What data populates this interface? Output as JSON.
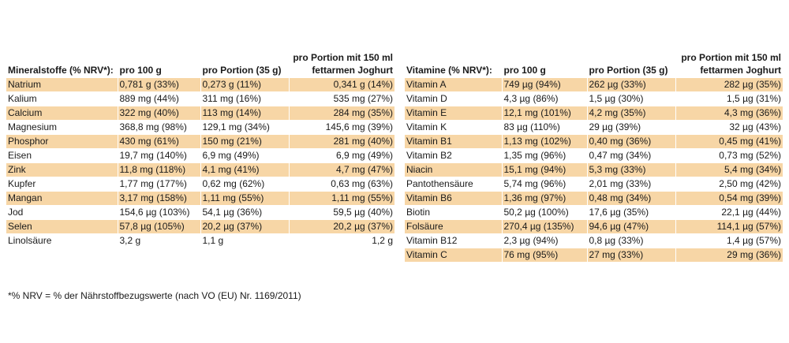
{
  "minerals": {
    "headers": {
      "name": "Mineralstoffe (% NRV*):",
      "per100": "pro 100 g",
      "perPortion": "pro Portion (35 g)",
      "perYogurt_line1": "pro Portion mit 150 ml",
      "perYogurt_line2": "fettarmen Joghurt"
    },
    "rows": [
      {
        "name": "Natrium",
        "per100": "0,781 g (33%)",
        "perPortion": "0,273 g (11%)",
        "perYogurt": "0,341 g (14%)"
      },
      {
        "name": "Kalium",
        "per100": "889 mg (44%)",
        "perPortion": "311 mg (16%)",
        "perYogurt": "535 mg (27%)"
      },
      {
        "name": "Calcium",
        "per100": "322 mg (40%)",
        "perPortion": "113 mg (14%)",
        "perYogurt": "284 mg (35%)"
      },
      {
        "name": "Magnesium",
        "per100": "368,8 mg (98%)",
        "perPortion": "129,1 mg (34%)",
        "perYogurt": "145,6 mg (39%)"
      },
      {
        "name": "Phosphor",
        "per100": "430 mg (61%)",
        "perPortion": "150 mg (21%)",
        "perYogurt": "281 mg (40%)"
      },
      {
        "name": "Eisen",
        "per100": "19,7 mg (140%)",
        "perPortion": "6,9 mg (49%)",
        "perYogurt": "6,9 mg (49%)"
      },
      {
        "name": "Zink",
        "per100": "11,8 mg (118%)",
        "perPortion": "4,1 mg (41%)",
        "perYogurt": "4,7 mg (47%)"
      },
      {
        "name": "Kupfer",
        "per100": "1,77 mg (177%)",
        "perPortion": "0,62 mg (62%)",
        "perYogurt": "0,63 mg (63%)"
      },
      {
        "name": "Mangan",
        "per100": "3,17 mg (158%)",
        "perPortion": "1,11 mg (55%)",
        "perYogurt": "1,11 mg (55%)"
      },
      {
        "name": "Jod",
        "per100": "154,6 µg (103%)",
        "perPortion": "54,1 µg (36%)",
        "perYogurt": "59,5 µg (40%)"
      },
      {
        "name": "Selen",
        "per100": "57,8 µg (105%)",
        "perPortion": "20,2 µg (37%)",
        "perYogurt": "20,2 µg (37%)"
      },
      {
        "name": "Linolsäure",
        "per100": "3,2 g",
        "perPortion": "1,1 g",
        "perYogurt": "1,2 g"
      }
    ]
  },
  "vitamins": {
    "headers": {
      "name": "Vitamine (% NRV*):",
      "per100": "pro 100 g",
      "perPortion": "pro Portion (35 g)",
      "perYogurt_line1": "pro Portion mit 150 ml",
      "perYogurt_line2": "fettarmen Joghurt"
    },
    "rows": [
      {
        "name": "Vitamin A",
        "per100": "749 µg (94%)",
        "perPortion": "262 µg (33%)",
        "perYogurt": "282 µg (35%)"
      },
      {
        "name": "Vitamin D",
        "per100": "4,3 µg (86%)",
        "perPortion": "1,5 µg (30%)",
        "perYogurt": "1,5 µg (31%)"
      },
      {
        "name": "Vitamin E",
        "per100": "12,1 mg (101%)",
        "perPortion": "4,2 mg (35%)",
        "perYogurt": "4,3 mg (36%)"
      },
      {
        "name": "Vitamin K",
        "per100": "83 µg (110%)",
        "perPortion": "29 µg (39%)",
        "perYogurt": "32 µg (43%)"
      },
      {
        "name": "Vitamin B1",
        "per100": "1,13 mg (102%)",
        "perPortion": "0,40 mg (36%)",
        "perYogurt": "0,45 mg (41%)"
      },
      {
        "name": "Vitamin B2",
        "per100": "1,35 mg (96%)",
        "perPortion": "0,47 mg (34%)",
        "perYogurt": "0,73 mg (52%)"
      },
      {
        "name": "Niacin",
        "per100": "15,1 mg (94%)",
        "perPortion": "5,3 mg (33%)",
        "perYogurt": "5,4 mg (34%)"
      },
      {
        "name": "Pantothensäure",
        "per100": "5,74 mg (96%)",
        "perPortion": "2,01 mg (33%)",
        "perYogurt": "2,50 mg (42%)"
      },
      {
        "name": "Vitamin B6",
        "per100": "1,36 mg (97%)",
        "perPortion": "0,48 mg (34%)",
        "perYogurt": "0,54 mg (39%)"
      },
      {
        "name": "Biotin",
        "per100": "50,2 µg (100%)",
        "perPortion": "17,6 µg (35%)",
        "perYogurt": "22,1 µg (44%)"
      },
      {
        "name": "Folsäure",
        "per100": "270,4 µg (135%)",
        "perPortion": "94,6 µg (47%)",
        "perYogurt": "114,1 µg (57%)"
      },
      {
        "name": "Vitamin B12",
        "per100": "2,3 µg (94%)",
        "perPortion": "0,8 µg (33%)",
        "perYogurt": "1,4 µg (57%)"
      },
      {
        "name": "Vitamin C",
        "per100": "76 mg (95%)",
        "perPortion": "27 mg (33%)",
        "perYogurt": "29 mg (36%)"
      }
    ]
  },
  "footnote": "*% NRV = % der Nährstoffbezugswerte (nach VO (EU) Nr. 1169/2011)",
  "colors": {
    "row_shade": "#f7d6a6",
    "text": "#1a1a1a",
    "background": "#ffffff"
  }
}
